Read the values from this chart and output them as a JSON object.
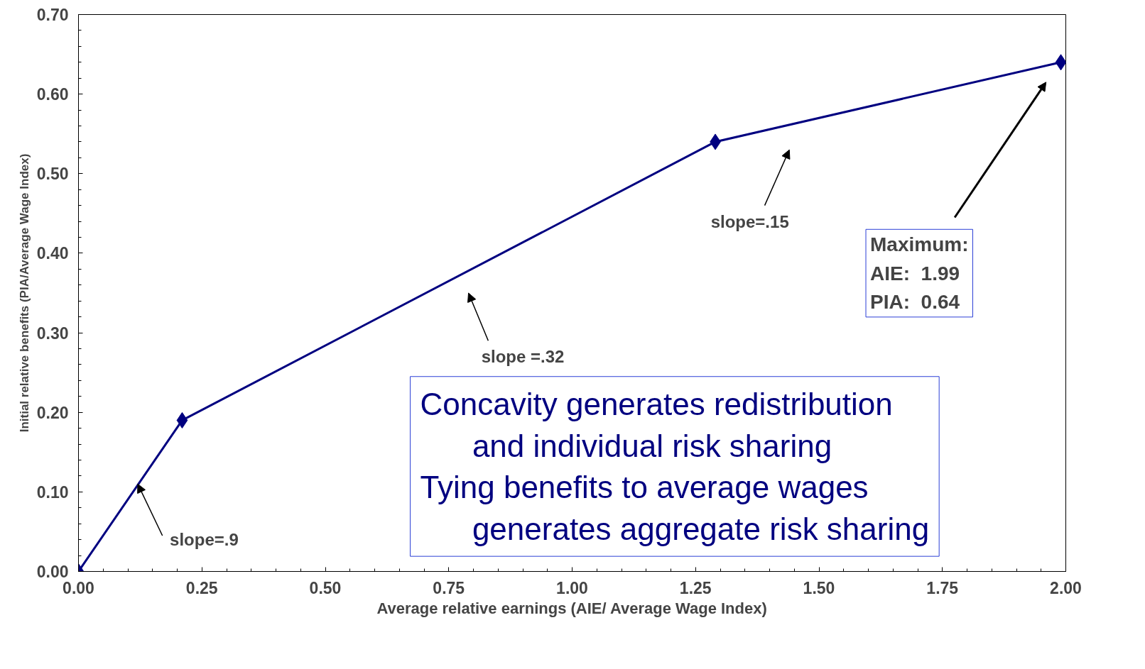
{
  "chart_data": {
    "type": "line",
    "xlabel": "Average relative earnings (AIE/ Average Wage Index)",
    "ylabel": "Initial relative benefits (PIA/Average Wage Index)",
    "x": [
      0,
      0.21,
      1.29,
      1.99
    ],
    "series": [
      {
        "color": "#000080",
        "values": [
          0,
          0.19,
          0.54,
          0.64
        ]
      }
    ],
    "marker": "diamond",
    "line_style": "solid",
    "grid": false,
    "xlim": [
      0,
      2
    ],
    "ylim": [
      0,
      0.7
    ],
    "xticks": [
      {
        "value": 0,
        "label": "0.00"
      },
      {
        "value": 0.25,
        "label": "0.25"
      },
      {
        "value": 0.5,
        "label": "0.50"
      },
      {
        "value": 0.75,
        "label": "0.75"
      },
      {
        "value": 1,
        "label": "1.00"
      },
      {
        "value": 1.25,
        "label": "1.25"
      },
      {
        "value": 1.5,
        "label": "1.50"
      },
      {
        "value": 1.75,
        "label": "1.75"
      },
      {
        "value": 2,
        "label": "2.00"
      }
    ],
    "yticks": [
      {
        "value": 0,
        "label": "0.00"
      },
      {
        "value": 0.1,
        "label": "0.10"
      },
      {
        "value": 0.2,
        "label": "0.20"
      },
      {
        "value": 0.3,
        "label": "0.30"
      },
      {
        "value": 0.4,
        "label": "0.40"
      },
      {
        "value": 0.5,
        "label": "0.50"
      },
      {
        "value": 0.6,
        "label": "0.60"
      },
      {
        "value": 0.7,
        "label": "0.70"
      }
    ],
    "annotations": [
      {
        "text": "slope=.9",
        "x": 0.12,
        "y": 0.11
      },
      "slope =.32",
      "slope=.15",
      "Maximum:\nAIE:  1.99\nPIA:  0.64",
      "Concavity generates redistribution\nand individual risk sharing\nTying benefits to average wages\ngenerates aggregate risk sharing"
    ]
  }
}
